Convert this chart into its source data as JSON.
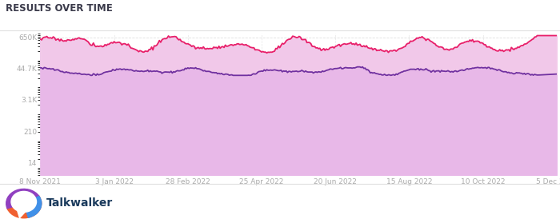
{
  "title": "RESULTS OVER TIME",
  "title_fontsize": 8.5,
  "title_color": "#3a3a4a",
  "background_color": "#ffffff",
  "yticks": [
    14,
    210,
    3100,
    44700,
    650000
  ],
  "ytick_labels": [
    "14",
    "210",
    "3.1K",
    "44.7K",
    "650K"
  ],
  "xtick_labels": [
    "8 Nov 2021",
    "3 Jan 2022",
    "28 Feb 2022",
    "25 Apr 2022",
    "20 Jun 2022",
    "15 Aug 2022",
    "10 Oct 2022",
    "5 Dec 2022"
  ],
  "grid_color": "#cccccc",
  "fill_color_bottom": "#e8b8e8",
  "fill_color_top": "#f5d0ea",
  "line_color_pink": "#e8206a",
  "line_color_purple": "#7030a0",
  "footer_text": "Talkwalker",
  "footer_color": "#1a3a5c",
  "ymin": 5,
  "ymax": 900000
}
